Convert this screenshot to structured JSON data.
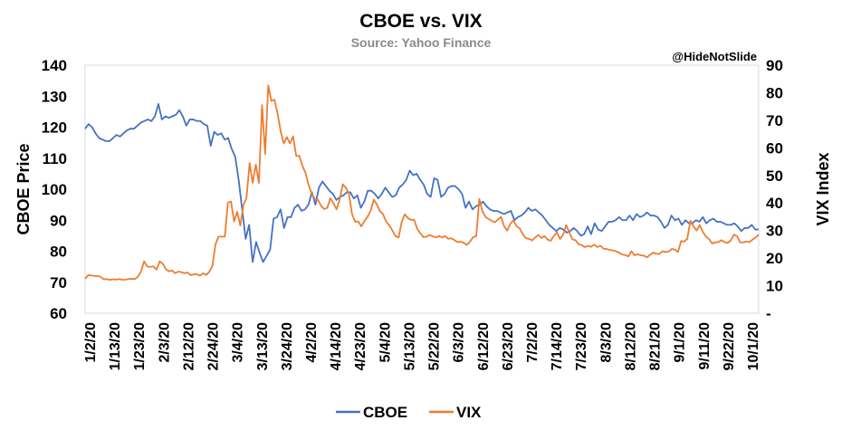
{
  "chart_data": {
    "type": "line",
    "title": "CBOE vs. VIX",
    "subtitle": "Source: Yahoo Finance",
    "watermark": "@HideNotSlide",
    "ylabel_left": "CBOE Price",
    "ylabel_right": "VIX Index",
    "ylim_left": [
      60,
      140
    ],
    "ylim_right": [
      0,
      90
    ],
    "yticks_left": [
      "60",
      "70",
      "80",
      "90",
      "100",
      "110",
      "120",
      "130",
      "140"
    ],
    "yticks_right": [
      "-",
      "10",
      "20",
      "30",
      "40",
      "50",
      "60",
      "70",
      "80",
      "90"
    ],
    "xticks": [
      "1/2/20",
      "1/13/20",
      "1/23/20",
      "2/3/20",
      "2/12/20",
      "2/24/20",
      "3/4/20",
      "3/13/20",
      "3/24/20",
      "4/2/20",
      "4/14/20",
      "4/23/20",
      "5/4/20",
      "5/13/20",
      "5/22/20",
      "6/3/20",
      "6/12/20",
      "6/23/20",
      "7/2/20",
      "7/14/20",
      "7/23/20",
      "8/3/20",
      "8/12/20",
      "8/21/20",
      "9/1/20",
      "9/11/20",
      "9/22/20",
      "10/1/20"
    ],
    "legend_position": "bottom",
    "series": [
      {
        "name": "CBOE",
        "axis": "left",
        "color": "#4472C4",
        "values": [
          119.5,
          121.0,
          120.0,
          118.0,
          116.5,
          116.0,
          115.5,
          115.5,
          116.5,
          117.5,
          117.0,
          118.0,
          119.0,
          119.5,
          119.5,
          120.5,
          121.5,
          122.0,
          122.5,
          122.0,
          123.5,
          127.5,
          122.5,
          123.5,
          123.0,
          123.5,
          124.0,
          125.5,
          123.5,
          120.5,
          122.5,
          122.5,
          122.0,
          122.0,
          121.0,
          120.5,
          114.0,
          118.5,
          117.5,
          118.0,
          116.0,
          116.5,
          113.0,
          110.5,
          103.0,
          93.5,
          84.0,
          88.5,
          76.5,
          83.0,
          79.5,
          76.5,
          78.5,
          80.5,
          90.5,
          91.0,
          93.5,
          87.5,
          91.0,
          91.0,
          94.0,
          95.0,
          93.0,
          93.5,
          95.0,
          99.0,
          95.0,
          100.5,
          102.5,
          101.0,
          99.5,
          98.5,
          96.5,
          97.5,
          98.0,
          99.0,
          99.0,
          97.0,
          98.0,
          94.0,
          96.0,
          99.5,
          99.5,
          98.5,
          97.0,
          98.5,
          100.5,
          99.0,
          97.5,
          98.0,
          100.5,
          101.5,
          103.0,
          106.0,
          104.5,
          105.0,
          103.0,
          101.5,
          98.5,
          97.5,
          103.5,
          103.0,
          97.5,
          98.5,
          100.5,
          101.0,
          101.0,
          100.0,
          98.5,
          94.0,
          96.0,
          93.5,
          94.5,
          95.0,
          96.0,
          94.5,
          93.5,
          93.0,
          93.0,
          92.5,
          92.0,
          92.5,
          93.0,
          90.0,
          91.0,
          91.5,
          92.5,
          94.0,
          93.0,
          93.5,
          92.5,
          91.5,
          90.0,
          88.5,
          87.5,
          86.5,
          87.5,
          87.0,
          86.0,
          86.5,
          87.5,
          86.5,
          85.0,
          85.5,
          88.0,
          85.5,
          89.0,
          87.0,
          86.5,
          88.0,
          89.5,
          89.5,
          90.0,
          91.0,
          90.0,
          90.0,
          91.5,
          90.0,
          92.0,
          91.0,
          91.5,
          92.5,
          91.5,
          91.5,
          91.0,
          89.5,
          87.5,
          88.5,
          91.5,
          90.0,
          90.5,
          88.5,
          90.0,
          89.0,
          89.0,
          90.0,
          89.5,
          91.0,
          89.0,
          90.0,
          90.5,
          89.5,
          89.5,
          89.0,
          88.5,
          88.5,
          89.0,
          88.0,
          86.5,
          87.5,
          87.5,
          88.5,
          87.0,
          87.0
        ]
      },
      {
        "name": "VIX",
        "axis": "right",
        "color": "#ED7D31",
        "values": [
          12.5,
          13.8,
          13.7,
          13.5,
          13.5,
          13.2,
          12.3,
          12.4,
          12.1,
          12.3,
          12.2,
          12.4,
          12.1,
          12.2,
          12.4,
          12.5,
          12.4,
          13.2,
          15.1,
          18.8,
          17.0,
          16.8,
          17.0,
          15.8,
          18.8,
          18.0,
          16.0,
          15.2,
          15.5,
          14.5,
          15.1,
          14.9,
          14.5,
          14.8,
          13.8,
          14.1,
          14.2,
          13.6,
          14.5,
          13.9,
          15.0,
          17.0,
          25.0,
          27.8,
          27.8,
          27.8,
          40.1,
          40.5,
          33.3,
          36.8,
          31.8,
          39.2,
          41.9,
          54.5,
          47.3,
          53.9,
          47.3,
          75.5,
          57.8,
          82.7,
          77.0,
          77.5,
          72.5,
          66.0,
          61.6,
          63.9,
          61.6,
          64.2,
          57.1,
          57.1,
          53.5,
          50.9,
          46.5,
          43.4,
          41.5,
          41.2,
          39.0,
          37.8,
          38.2,
          41.7,
          40.0,
          37.7,
          41.2,
          46.8,
          45.5,
          43.4,
          35.9,
          33.2,
          33.3,
          31.5,
          33.5,
          35.0,
          37.2,
          41.2,
          39.5,
          37.0,
          35.9,
          33.2,
          31.9,
          30.0,
          28.0,
          27.5,
          33.2,
          35.9,
          34.5,
          33.9,
          33.9,
          30.6,
          29.0,
          27.6,
          27.8,
          28.4,
          27.9,
          27.5,
          28.0,
          27.5,
          28.0,
          27.0,
          27.2,
          26.5,
          25.8,
          26.0,
          25.5,
          24.8,
          26.0,
          27.6,
          28.0,
          41.5,
          37.0,
          34.9,
          34.2,
          33.5,
          33.0,
          34.0,
          35.0,
          31.5,
          30.0,
          32.5,
          33.7,
          31.5,
          30.8,
          28.6,
          27.2,
          27.0,
          26.4,
          27.5,
          28.4,
          27.3,
          28.0,
          26.7,
          26.3,
          28.0,
          29.4,
          26.9,
          28.5,
          32.0,
          29.3,
          26.8,
          26.5,
          25.0,
          24.7,
          24.0,
          24.4,
          24.1,
          24.9,
          24.0,
          24.5,
          23.4,
          23.3,
          23.0,
          22.8,
          22.5,
          22.0,
          21.3,
          21.1,
          20.6,
          22.5,
          21.0,
          21.4,
          21.0,
          20.9,
          20.3,
          21.2,
          22.0,
          21.6,
          21.5,
          22.5,
          22.2,
          22.4,
          23.3,
          23.1,
          22.2,
          26.2,
          26.0,
          27.0,
          33.6,
          31.5,
          30.0,
          32.0,
          29.5,
          27.8,
          26.9,
          25.3,
          25.7,
          25.8,
          26.5,
          25.8,
          25.5,
          26.4,
          28.5,
          28.0,
          25.7,
          25.7,
          26.0,
          25.8,
          26.7,
          27.5,
          28.5
        ]
      }
    ]
  }
}
